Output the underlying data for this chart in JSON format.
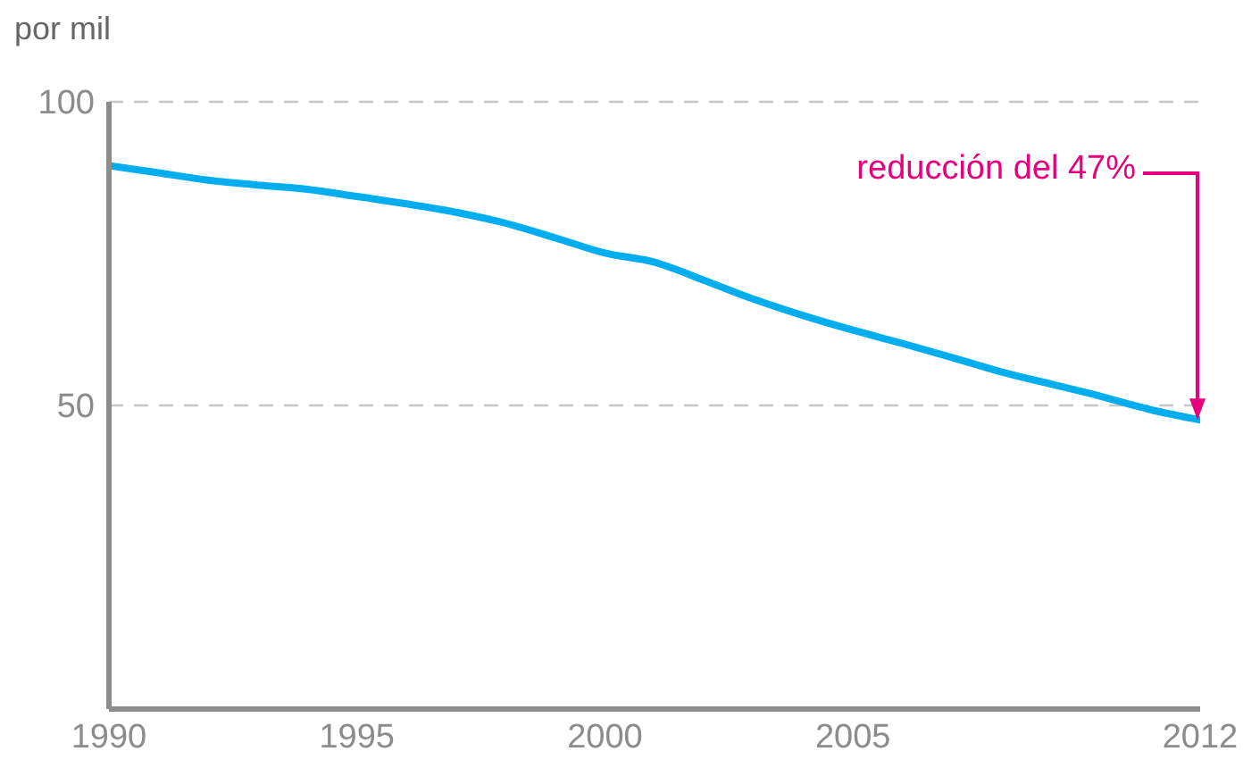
{
  "chart_data": {
    "type": "line",
    "ylabel": "por mil",
    "x": [
      1990,
      1991,
      1992,
      1993,
      1994,
      1995,
      1996,
      1997,
      1998,
      1999,
      2000,
      2001,
      2002,
      2003,
      2004,
      2005,
      2006,
      2007,
      2008,
      2009,
      2010,
      2011,
      2012
    ],
    "series": [
      {
        "color": "#00aeef",
        "values": [
          89.5,
          88.3,
          87.1,
          86.3,
          85.6,
          84.4,
          83.2,
          81.8,
          80,
          77.6,
          75.1,
          73.6,
          70.6,
          67.5,
          64.8,
          62.4,
          60.2,
          57.9,
          55.5,
          53.5,
          51.5,
          49.3,
          47.6
        ]
      }
    ],
    "xlim": [
      1990,
      2012
    ],
    "xticks": [
      1990,
      1995,
      2000,
      2005,
      2012
    ],
    "ylim": [
      0,
      100
    ],
    "yticks": [
      50,
      100
    ],
    "grid": "y",
    "annotations": [
      "reducción del 47%"
    ]
  }
}
